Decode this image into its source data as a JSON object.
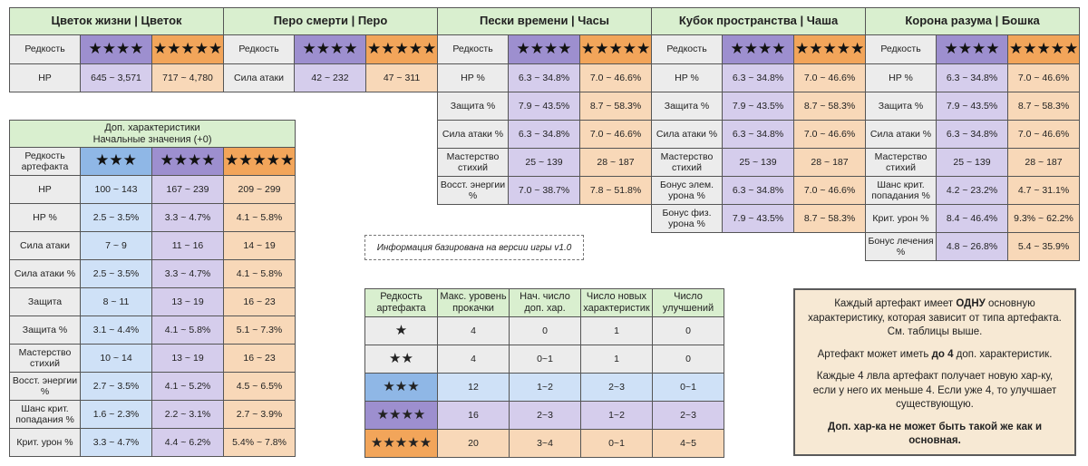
{
  "main_stats": {
    "rarity_label": "Редкость",
    "star4": "★★★★",
    "star5": "★★★★★",
    "flower": {
      "title": "Цветок жизни | Цветок",
      "rows": [
        {
          "label": "HP",
          "r4": "645 ~ 3,571",
          "r5": "717 ~ 4,780"
        }
      ]
    },
    "plume": {
      "title": "Перо смерти | Перо",
      "rows": [
        {
          "label": "Сила атаки",
          "r4": "42 ~ 232",
          "r5": "47 ~ 311"
        }
      ]
    },
    "sands": {
      "title": "Пески времени | Часы",
      "rows": [
        {
          "label": "HP %",
          "r4": "6.3 ~ 34.8%",
          "r5": "7.0 ~ 46.6%"
        },
        {
          "label": "Защита %",
          "r4": "7.9 ~ 43.5%",
          "r5": "8.7 ~ 58.3%"
        },
        {
          "label": "Сила атаки %",
          "r4": "6.3 ~ 34.8%",
          "r5": "7.0 ~ 46.6%"
        },
        {
          "label": "Мастерство стихий",
          "r4": "25 ~ 139",
          "r5": "28 ~ 187"
        },
        {
          "label": "Восст. энергии %",
          "r4": "7.0 ~ 38.7%",
          "r5": "7.8 ~ 51.8%"
        }
      ]
    },
    "goblet": {
      "title": "Кубок пространства | Чаша",
      "rows": [
        {
          "label": "HP %",
          "r4": "6.3 ~ 34.8%",
          "r5": "7.0 ~ 46.6%"
        },
        {
          "label": "Защита %",
          "r4": "7.9 ~ 43.5%",
          "r5": "8.7 ~ 58.3%"
        },
        {
          "label": "Сила атаки %",
          "r4": "6.3 ~ 34.8%",
          "r5": "7.0 ~ 46.6%"
        },
        {
          "label": "Мастерство стихий",
          "r4": "25 ~ 139",
          "r5": "28 ~ 187"
        },
        {
          "label": "Бонус элем. урона %",
          "r4": "6.3 ~ 34.8%",
          "r5": "7.0 ~ 46.6%"
        },
        {
          "label": "Бонус физ. урона %",
          "r4": "7.9 ~ 43.5%",
          "r5": "8.7 ~ 58.3%"
        }
      ]
    },
    "circlet": {
      "title": "Корона разума | Бошка",
      "rows": [
        {
          "label": "HP %",
          "r4": "6.3 ~ 34.8%",
          "r5": "7.0 ~ 46.6%"
        },
        {
          "label": "Защита %",
          "r4": "7.9 ~ 43.5%",
          "r5": "8.7 ~ 58.3%"
        },
        {
          "label": "Сила атаки %",
          "r4": "6.3 ~ 34.8%",
          "r5": "7.0 ~ 46.6%"
        },
        {
          "label": "Мастерство стихий",
          "r4": "25 ~ 139",
          "r5": "28 ~ 187"
        },
        {
          "label": "Шанс крит. попадания %",
          "r4": "4.2 ~ 23.2%",
          "r5": "4.7 ~ 31.1%"
        },
        {
          "label": "Крит. урон %",
          "r4": "8.4 ~ 46.4%",
          "r5": "9.3% ~ 62.2%"
        },
        {
          "label": "Бонус лечения %",
          "r4": "4.8 ~ 26.8%",
          "r5": "5.4 ~ 35.9%"
        }
      ]
    }
  },
  "substats": {
    "title_line1": "Доп. характеристики",
    "title_line2": "Начальные значения (+0)",
    "rarity_label": "Редкость артефакта",
    "star3": "★★★",
    "star4": "★★★★",
    "star5": "★★★★★",
    "rows": [
      {
        "label": "HP",
        "r3": "100 ~ 143",
        "r4": "167 ~ 239",
        "r5": "209 ~ 299"
      },
      {
        "label": "HP %",
        "r3": "2.5 ~ 3.5%",
        "r4": "3.3 ~ 4.7%",
        "r5": "4.1 ~ 5.8%"
      },
      {
        "label": "Сила атаки",
        "r3": "7 ~ 9",
        "r4": "11 ~ 16",
        "r5": "14 ~ 19"
      },
      {
        "label": "Сила атаки %",
        "r3": "2.5 ~ 3.5%",
        "r4": "3.3 ~ 4.7%",
        "r5": "4.1 ~ 5.8%"
      },
      {
        "label": "Защита",
        "r3": "8 ~ 11",
        "r4": "13 ~ 19",
        "r5": "16 ~ 23"
      },
      {
        "label": "Защита %",
        "r3": "3.1 ~ 4.4%",
        "r4": "4.1 ~ 5.8%",
        "r5": "5.1 ~ 7.3%"
      },
      {
        "label": "Мастерство стихий",
        "r3": "10 ~ 14",
        "r4": "13 ~ 19",
        "r5": "16 ~ 23"
      },
      {
        "label": "Восст. энергии %",
        "r3": "2.7 ~ 3.5%",
        "r4": "4.1 ~ 5.2%",
        "r5": "4.5 ~ 6.5%"
      },
      {
        "label": "Шанс крит. попадания %",
        "r3": "1.6 ~ 2.3%",
        "r4": "2.2 ~ 3.1%",
        "r5": "2.7 ~ 3.9%"
      },
      {
        "label": "Крит. урон %",
        "r3": "3.3 ~ 4.7%",
        "r4": "4.4 ~ 6.2%",
        "r5": "5.4% ~ 7.8%"
      }
    ]
  },
  "version_note": "Информация базирована на версии игры v1.0",
  "leveling": {
    "headers": [
      "Редкость артефакта",
      "Макс. уровень прокачки",
      "Нач. число доп. хар.",
      "Число новых характеристик",
      "Число улучшений"
    ],
    "rows": [
      {
        "stars": "★",
        "max": "4",
        "init": "0",
        "new": "1",
        "upg": "0"
      },
      {
        "stars": "★★",
        "max": "4",
        "init": "0~1",
        "new": "1",
        "upg": "0"
      },
      {
        "stars": "★★★",
        "max": "12",
        "init": "1~2",
        "new": "2~3",
        "upg": "0~1"
      },
      {
        "stars": "★★★★",
        "max": "16",
        "init": "2~3",
        "new": "1~2",
        "upg": "2~3"
      },
      {
        "stars": "★★★★★",
        "max": "20",
        "init": "3~4",
        "new": "0~1",
        "upg": "4~5"
      }
    ]
  },
  "info": {
    "p1_a": "Каждый артефакт имеет ",
    "p1_b": "ОДНУ",
    "p1_c": " основную характеристику, которая зависит от типа артефакта. См. таблицы выше.",
    "p2_a": "Артефакт может иметь ",
    "p2_b": "до 4",
    "p2_c": " доп. характеристик.",
    "p3": "Каждые 4 лвла артефакт получает новую хар-ку, если у него их меньше 4. Если уже 4, то улучшает существующую.",
    "p4": "Доп. хар-ка не может быть такой же как и основная."
  }
}
